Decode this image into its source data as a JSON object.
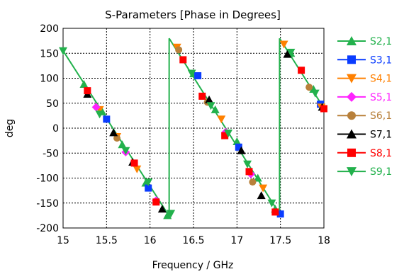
{
  "chart_data": {
    "type": "line",
    "title": "S-Parameters [Phase in Degrees]",
    "xlabel": "Frequency / GHz",
    "ylabel": "deg",
    "xlim": [
      15,
      18
    ],
    "ylim": [
      -200,
      200
    ],
    "xticks": [
      15,
      15.5,
      16,
      16.5,
      17,
      17.5,
      18
    ],
    "xtick_labels": [
      "15",
      "15.5",
      "16",
      "16.5",
      "17",
      "17.5",
      "18"
    ],
    "yticks": [
      -200,
      -150,
      -100,
      -50,
      0,
      50,
      100,
      150,
      200
    ],
    "ytick_labels": [
      "-200",
      "-150",
      "-100",
      "-50",
      "0",
      "50",
      "100",
      "150",
      "200"
    ],
    "grid": true,
    "legend_position": "right",
    "phase_segments": [
      [
        [
          15.0,
          155
        ],
        [
          16.22,
          -176
        ]
      ],
      [
        [
          16.22,
          180
        ],
        [
          17.49,
          -172
        ]
      ],
      [
        [
          17.49,
          180
        ],
        [
          18.0,
          40
        ]
      ]
    ],
    "series": [
      {
        "name": "S2,1",
        "color": "#22b14c",
        "marker": "triangle-up",
        "points": [
          [
            15.24,
            88
          ],
          [
            15.45,
            33
          ],
          [
            15.68,
            -33
          ],
          [
            15.95,
            -110
          ],
          [
            16.2,
            -175
          ],
          [
            16.5,
            109
          ],
          [
            16.75,
            37
          ],
          [
            17.0,
            -27
          ],
          [
            17.24,
            -100
          ],
          [
            17.44,
            -162
          ],
          [
            17.62,
            150
          ],
          [
            17.88,
            78
          ]
        ]
      },
      {
        "name": "S3,1",
        "color": "#0a3cff",
        "marker": "square",
        "points": [
          [
            15.5,
            18
          ],
          [
            15.98,
            -120
          ],
          [
            16.55,
            105
          ],
          [
            17.02,
            -38
          ],
          [
            17.5,
            -172
          ],
          [
            17.96,
            48
          ]
        ]
      },
      {
        "name": "S4,1",
        "color": "#ff8000",
        "marker": "triangle-down",
        "points": [
          [
            15.42,
            37
          ],
          [
            15.62,
            -17
          ],
          [
            15.85,
            -82
          ],
          [
            16.31,
            162
          ],
          [
            16.82,
            18
          ],
          [
            17.3,
            -120
          ],
          [
            17.54,
            168
          ],
          [
            17.97,
            42
          ]
        ]
      },
      {
        "name": "S5,1",
        "color": "#ff22ff",
        "marker": "diamond",
        "points": [
          [
            15.38,
            42
          ],
          [
            15.72,
            -48
          ],
          [
            16.07,
            -145
          ],
          [
            16.87,
            -8
          ],
          [
            17.16,
            -92
          ]
        ]
      },
      {
        "name": "S6,1",
        "color": "#b8803a",
        "marker": "circle",
        "points": [
          [
            15.62,
            -20
          ],
          [
            16.33,
            157
          ],
          [
            16.66,
            52
          ],
          [
            17.18,
            -108
          ],
          [
            17.83,
            82
          ]
        ]
      },
      {
        "name": "S7,1",
        "color": "#000000",
        "marker": "triangle-up",
        "points": [
          [
            15.28,
            68
          ],
          [
            15.58,
            -9
          ],
          [
            15.8,
            -68
          ],
          [
            16.14,
            -162
          ],
          [
            16.68,
            57
          ],
          [
            17.05,
            -45
          ],
          [
            17.28,
            -135
          ],
          [
            17.58,
            148
          ],
          [
            17.98,
            42
          ]
        ]
      },
      {
        "name": "S8,1",
        "color": "#ff0000",
        "marker": "square",
        "points": [
          [
            15.28,
            75
          ],
          [
            15.82,
            -70
          ],
          [
            16.07,
            -148
          ],
          [
            16.38,
            137
          ],
          [
            16.6,
            64
          ],
          [
            16.86,
            -15
          ],
          [
            17.14,
            -87
          ],
          [
            17.44,
            -168
          ],
          [
            17.74,
            116
          ],
          [
            18.0,
            39
          ]
        ]
      },
      {
        "name": "S9,1",
        "color": "#22b14c",
        "marker": "triangle-down",
        "points": [
          [
            15.0,
            155
          ],
          [
            15.42,
            28
          ],
          [
            15.72,
            -45
          ],
          [
            15.98,
            -108
          ],
          [
            16.24,
            -171
          ],
          [
            16.48,
            110
          ],
          [
            16.7,
            45
          ],
          [
            16.9,
            -10
          ],
          [
            17.12,
            -72
          ],
          [
            17.4,
            -150
          ],
          [
            17.62,
            152
          ],
          [
            17.9,
            70
          ]
        ]
      }
    ]
  }
}
